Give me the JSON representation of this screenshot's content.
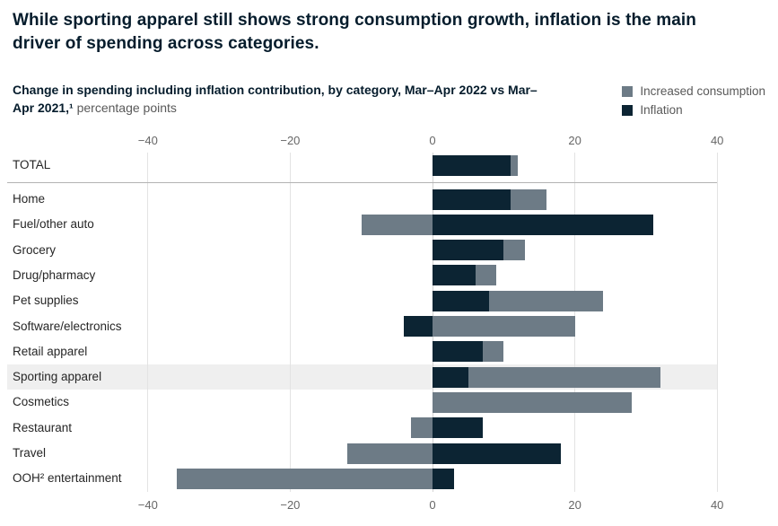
{
  "title": "While sporting apparel still shows strong consumption growth, inflation is the main driver of spending across categories.",
  "subtitle": {
    "bold": "Change in spending including inflation contribution, by category, Mar–Apr 2022 vs Mar–Apr 2021,¹",
    "regular": " percentage points"
  },
  "legend": [
    {
      "label": "Increased consumption",
      "color": "#6d7b86",
      "swatch_icon": "square-icon"
    },
    {
      "label": "Inflation",
      "color": "#0c2433",
      "swatch_icon": "square-icon"
    }
  ],
  "chart_data": {
    "type": "bar",
    "orientation": "horizontal",
    "stacked": true,
    "diverging": true,
    "categories": [
      "TOTAL",
      "Home",
      "Fuel/other auto",
      "Grocery",
      "Drug/pharmacy",
      "Pet supplies",
      "Software/electronics",
      "Retail apparel",
      "Sporting apparel",
      "Cosmetics",
      "Restaurant",
      "Travel",
      "OOH² entertainment"
    ],
    "series": [
      {
        "name": "Inflation",
        "color": "#0c2433",
        "values": [
          11,
          11,
          31,
          10,
          6,
          8,
          -4,
          7,
          5,
          0,
          7,
          18,
          3
        ]
      },
      {
        "name": "Increased consumption",
        "color": "#6d7b86",
        "values": [
          1,
          5,
          -10,
          3,
          3,
          16,
          20,
          3,
          27,
          28,
          -3,
          -12,
          -36
        ]
      }
    ],
    "xlim": [
      -40,
      40
    ],
    "xticks": [
      -40,
      -20,
      0,
      20,
      40
    ],
    "tick_labels": [
      "−40",
      "−20",
      "0",
      "20",
      "40"
    ],
    "axis_label_positions": [
      "top",
      "bottom"
    ],
    "grid": true,
    "highlighted_category": "Sporting apparel",
    "total_row_separated": true,
    "legend_position": "top-right"
  }
}
